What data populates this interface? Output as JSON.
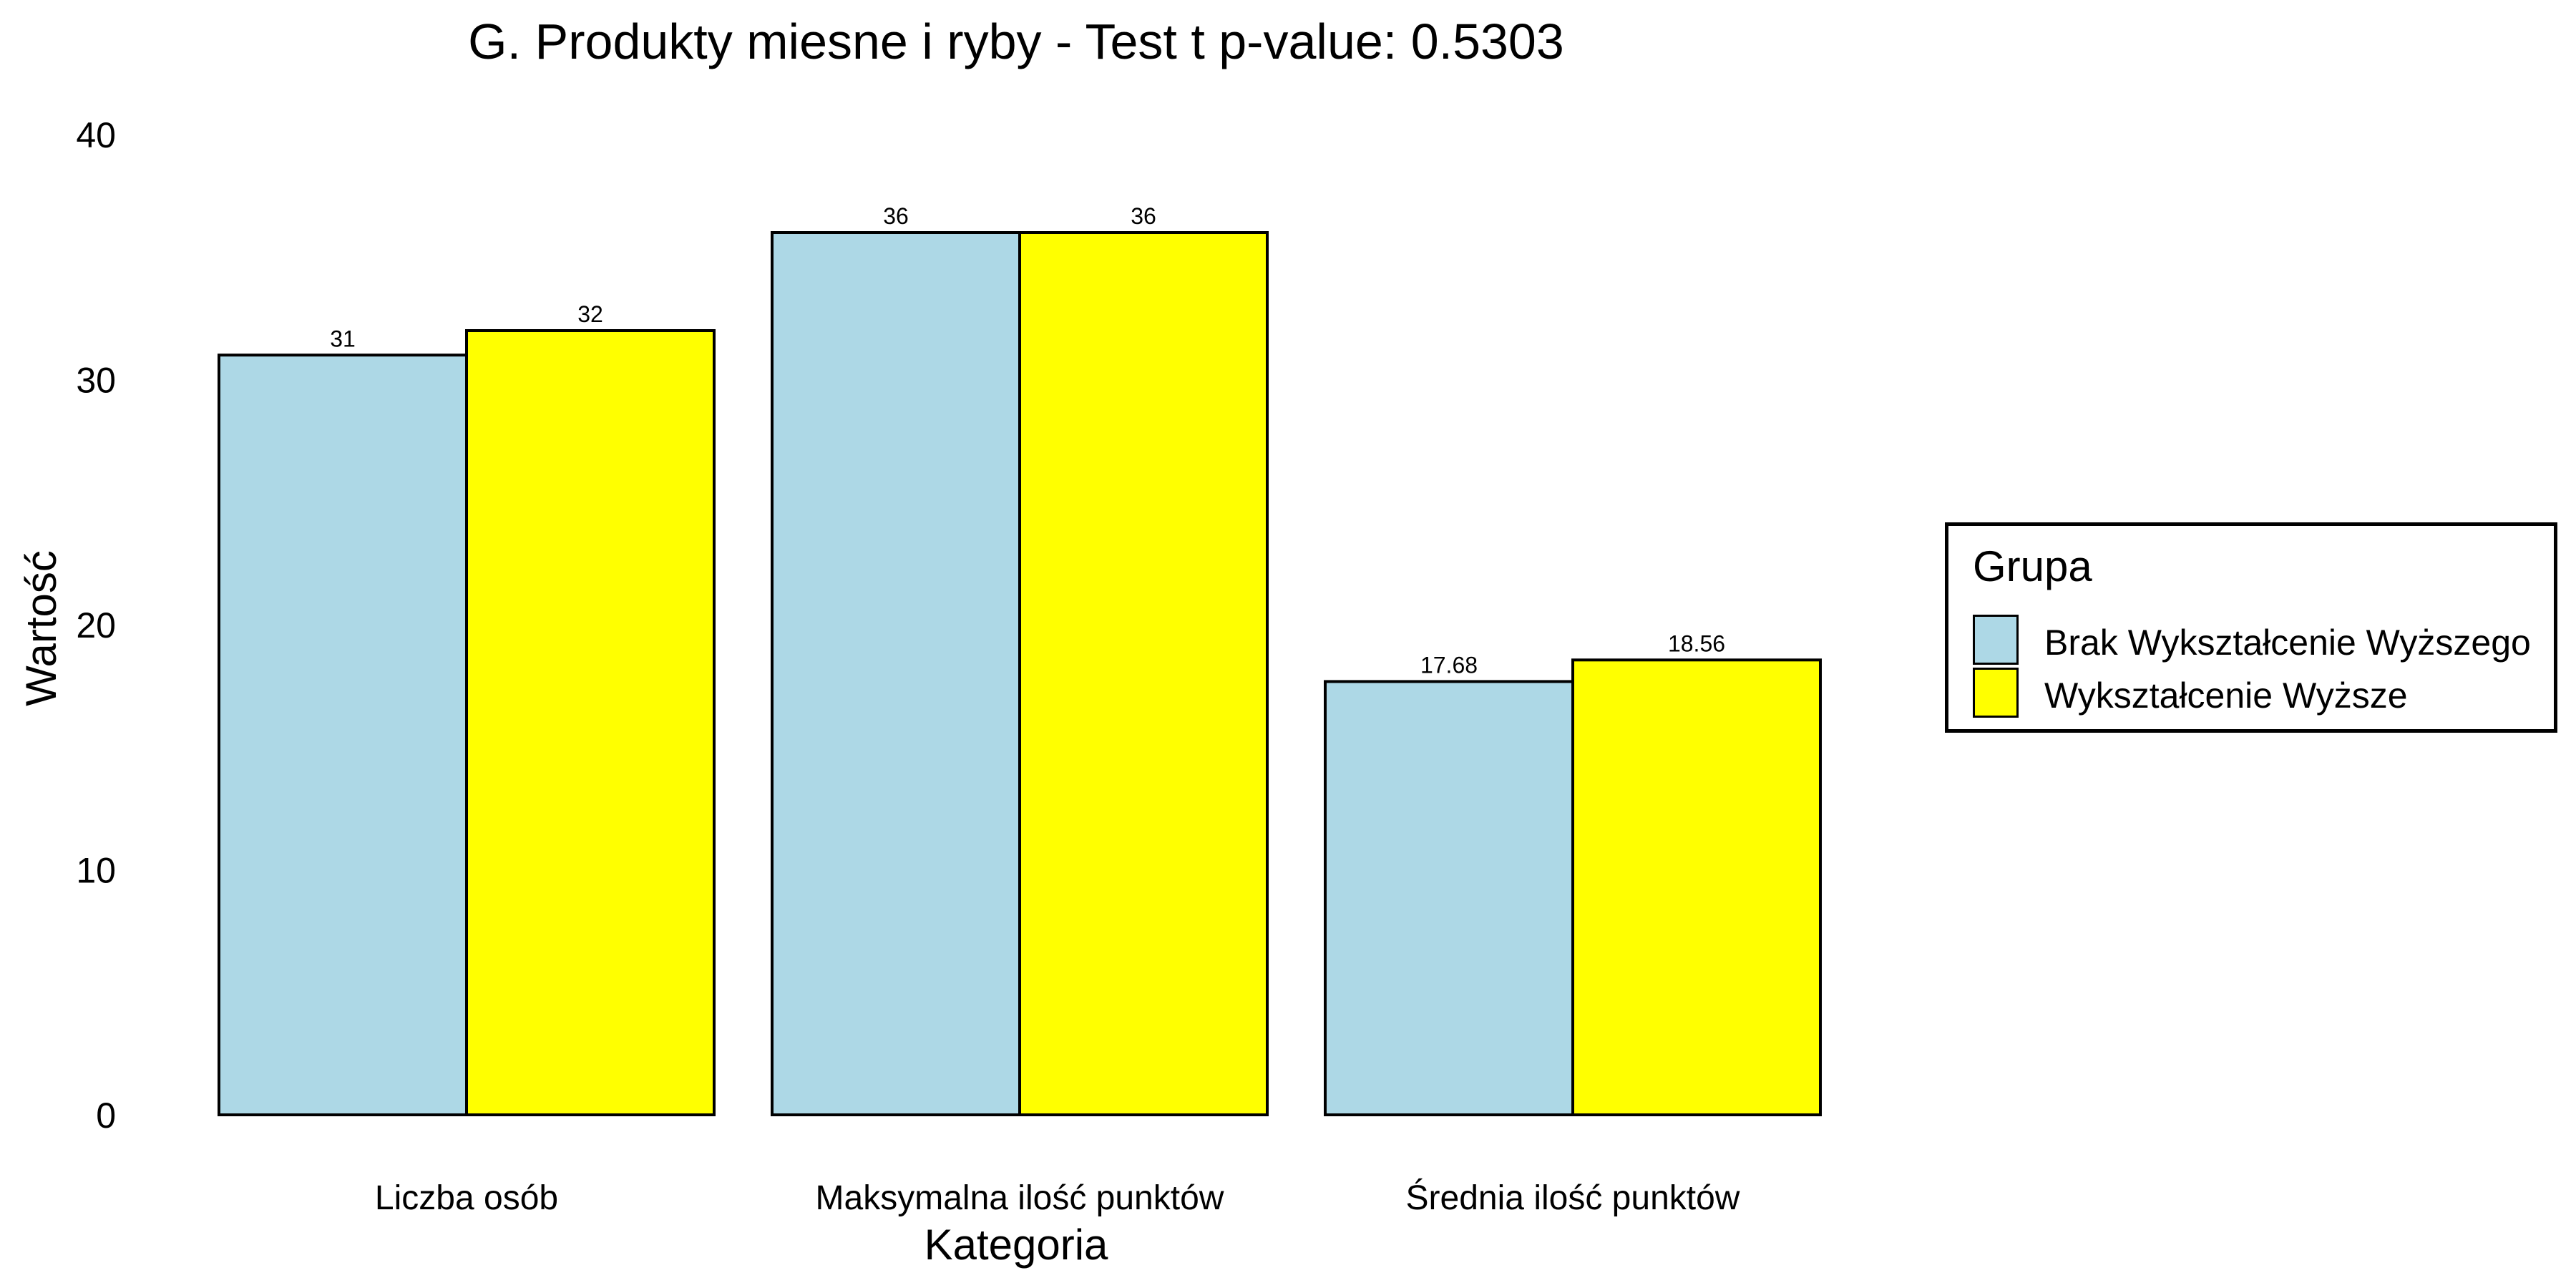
{
  "chart_data": {
    "type": "bar",
    "title": "G. Produkty miesne i ryby - Test t p-value: 0.5303",
    "xlabel": "Kategoria",
    "ylabel": "Wartość",
    "categories": [
      "Liczba osób",
      "Maksymalna ilość punktów",
      "Średnia ilość punktów"
    ],
    "series": [
      {
        "name": "Brak Wykształcenie Wyższego",
        "color": "#add8e6",
        "values": [
          31,
          36,
          17.68
        ],
        "labels": [
          "31",
          "36",
          "17.68"
        ]
      },
      {
        "name": "Wykształcenie Wyższe",
        "color": "#ffff00",
        "values": [
          32,
          36,
          18.56
        ],
        "labels": [
          "32",
          "36",
          "18.56"
        ]
      }
    ],
    "ylim": [
      0,
      40
    ],
    "yticks": [
      0,
      10,
      20,
      30,
      40
    ],
    "grid": false,
    "legend": {
      "title": "Grupa",
      "position": "right"
    }
  }
}
